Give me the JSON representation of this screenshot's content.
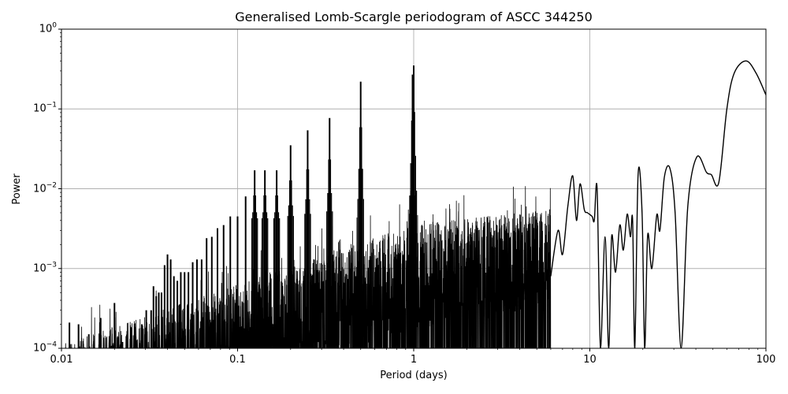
{
  "figure": {
    "title": "Generalised Lomb-Scargle periodogram of ASCC 344250",
    "xlabel": "Period (days)",
    "ylabel": "Power",
    "xticks": [
      "0.01",
      "0.1",
      "1",
      "10",
      "100"
    ],
    "yticks": [
      {
        "base": "10",
        "exp": "0"
      },
      {
        "base": "10",
        "exp": "−1"
      },
      {
        "base": "10",
        "exp": "−2"
      },
      {
        "base": "10",
        "exp": "−3"
      },
      {
        "base": "10",
        "exp": "−4"
      }
    ],
    "line_color": "#000000",
    "grid_color": "#b0b0b0"
  },
  "chart_data": {
    "type": "line",
    "title": "Generalised Lomb-Scargle periodogram of ASCC 344250",
    "xlabel": "Period (days)",
    "ylabel": "Power",
    "xscale": "log",
    "yscale": "log",
    "xlim": [
      0.01,
      100
    ],
    "ylim": [
      0.0001,
      1
    ],
    "grid": true,
    "legend": null,
    "harmonic_peaks": [
      {
        "period": 1.0,
        "power": 0.35
      },
      {
        "period": 0.985,
        "power": 0.27
      },
      {
        "period": 0.5,
        "power": 0.22
      },
      {
        "period": 0.333,
        "power": 0.077
      },
      {
        "period": 0.25,
        "power": 0.054
      },
      {
        "period": 0.2,
        "power": 0.035
      },
      {
        "period": 0.1667,
        "power": 0.017
      },
      {
        "period": 0.1429,
        "power": 0.017
      },
      {
        "period": 0.125,
        "power": 0.017
      },
      {
        "period": 0.1111,
        "power": 0.008
      },
      {
        "period": 0.1,
        "power": 0.0045
      },
      {
        "period": 0.0909,
        "power": 0.0045
      },
      {
        "period": 0.0833,
        "power": 0.0035
      },
      {
        "period": 0.0769,
        "power": 0.0032
      },
      {
        "period": 0.0714,
        "power": 0.0025
      },
      {
        "period": 0.0667,
        "power": 0.0024
      },
      {
        "period": 0.0625,
        "power": 0.0013
      },
      {
        "period": 0.0588,
        "power": 0.0013
      },
      {
        "period": 0.0556,
        "power": 0.0012
      },
      {
        "period": 0.0526,
        "power": 0.0009
      },
      {
        "period": 0.05,
        "power": 0.0009
      },
      {
        "period": 0.0476,
        "power": 0.0009
      },
      {
        "period": 0.0455,
        "power": 0.0007
      },
      {
        "period": 0.0435,
        "power": 0.0008
      },
      {
        "period": 0.0417,
        "power": 0.0013
      },
      {
        "period": 0.04,
        "power": 0.0015
      },
      {
        "period": 0.0385,
        "power": 0.0011
      },
      {
        "period": 0.037,
        "power": 0.0005
      },
      {
        "period": 0.0357,
        "power": 0.0005
      },
      {
        "period": 0.0345,
        "power": 0.00045
      },
      {
        "period": 0.0333,
        "power": 0.0006
      },
      {
        "period": 0.0323,
        "power": 0.0003
      },
      {
        "period": 0.0303,
        "power": 0.0003
      },
      {
        "period": 0.0286,
        "power": 0.0002
      },
      {
        "period": 0.0263,
        "power": 0.00014
      },
      {
        "period": 0.025,
        "power": 0.00018
      },
      {
        "period": 0.0222,
        "power": 0.00012
      },
      {
        "period": 0.02,
        "power": 0.00037
      },
      {
        "period": 0.0167,
        "power": 0.00024
      },
      {
        "period": 0.0143,
        "power": 0.00015
      },
      {
        "period": 0.0125,
        "power": 0.0002
      },
      {
        "period": 0.0111,
        "power": 0.00021
      }
    ],
    "long_period_curve": [
      {
        "period": 6.0,
        "power": 0.0008
      },
      {
        "period": 6.6,
        "power": 0.003
      },
      {
        "period": 7.0,
        "power": 0.0015
      },
      {
        "period": 7.5,
        "power": 0.006
      },
      {
        "period": 8.0,
        "power": 0.0145
      },
      {
        "period": 8.4,
        "power": 0.004
      },
      {
        "period": 8.8,
        "power": 0.0115
      },
      {
        "period": 9.3,
        "power": 0.0055
      },
      {
        "period": 9.7,
        "power": 0.005
      },
      {
        "period": 10.3,
        "power": 0.0045
      },
      {
        "period": 10.6,
        "power": 0.004
      },
      {
        "period": 11.0,
        "power": 0.01
      },
      {
        "period": 11.5,
        "power": 0.0001
      },
      {
        "period": 12.2,
        "power": 0.0025
      },
      {
        "period": 12.8,
        "power": 0.0001
      },
      {
        "period": 13.3,
        "power": 0.0025
      },
      {
        "period": 14.0,
        "power": 0.0009
      },
      {
        "period": 14.8,
        "power": 0.0035
      },
      {
        "period": 15.5,
        "power": 0.0017
      },
      {
        "period": 16.3,
        "power": 0.0048
      },
      {
        "period": 17.0,
        "power": 0.0025
      },
      {
        "period": 17.5,
        "power": 0.004
      },
      {
        "period": 18.0,
        "power": 0.0001
      },
      {
        "period": 18.8,
        "power": 0.015
      },
      {
        "period": 19.8,
        "power": 0.005
      },
      {
        "period": 20.5,
        "power": 0.0001
      },
      {
        "period": 21.3,
        "power": 0.0026
      },
      {
        "period": 22.5,
        "power": 0.001
      },
      {
        "period": 24.0,
        "power": 0.0047
      },
      {
        "period": 25.0,
        "power": 0.003
      },
      {
        "period": 26.5,
        "power": 0.014
      },
      {
        "period": 28.5,
        "power": 0.018
      },
      {
        "period": 30.5,
        "power": 0.005
      },
      {
        "period": 33.0,
        "power": 0.0001
      },
      {
        "period": 36.0,
        "power": 0.006
      },
      {
        "period": 40.5,
        "power": 0.025
      },
      {
        "period": 46.0,
        "power": 0.016
      },
      {
        "period": 49.0,
        "power": 0.015
      },
      {
        "period": 54.0,
        "power": 0.012
      },
      {
        "period": 60.0,
        "power": 0.1
      },
      {
        "period": 66.0,
        "power": 0.28
      },
      {
        "period": 77.0,
        "power": 0.4
      },
      {
        "period": 88.0,
        "power": 0.28
      },
      {
        "period": 100.0,
        "power": 0.15
      }
    ]
  }
}
